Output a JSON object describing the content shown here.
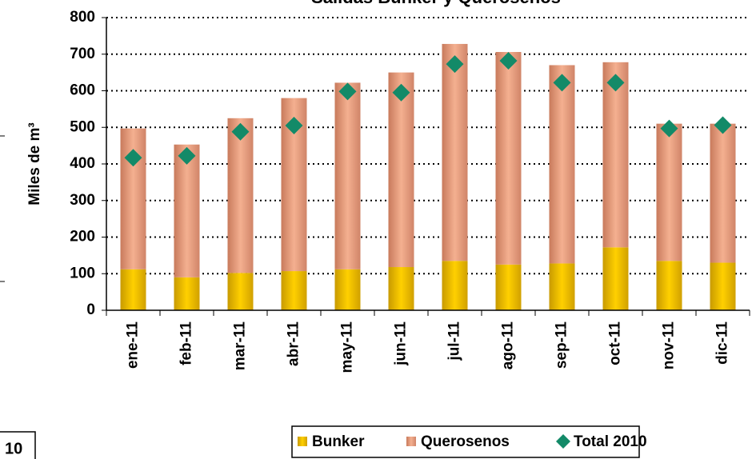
{
  "chart_data": {
    "type": "bar",
    "title": "Salidas Bunker y Querosenos",
    "y_label": "Miles de m³",
    "annotations": [
      "10"
    ],
    "categories": [
      "ene-11",
      "feb-11",
      "mar-11",
      "abr-11",
      "may-11",
      "jun-11",
      "jul-11",
      "ago-11",
      "sep-11",
      "oct-11",
      "nov-11",
      "dic-11"
    ],
    "series": [
      {
        "name": "Bunker",
        "type": "bar",
        "color": "#f0c000",
        "values": [
          112,
          90,
          102,
          107,
          112,
          118,
          135,
          125,
          128,
          172,
          135,
          130
        ]
      },
      {
        "name": "Querosenos",
        "type": "bar",
        "color": "#e8a080",
        "values": [
          385,
          363,
          423,
          473,
          510,
          532,
          593,
          581,
          542,
          506,
          375,
          380
        ]
      },
      {
        "name": "Total 2010",
        "type": "marker",
        "color": "#138a68",
        "values": [
          417,
          422,
          488,
          505,
          598,
          595,
          673,
          682,
          622,
          622,
          497,
          506
        ]
      }
    ],
    "ylim": [
      0,
      800
    ],
    "yticks": [
      0,
      100,
      200,
      300,
      400,
      500,
      600,
      700,
      800
    ],
    "grid": true,
    "legend": "bottom"
  }
}
